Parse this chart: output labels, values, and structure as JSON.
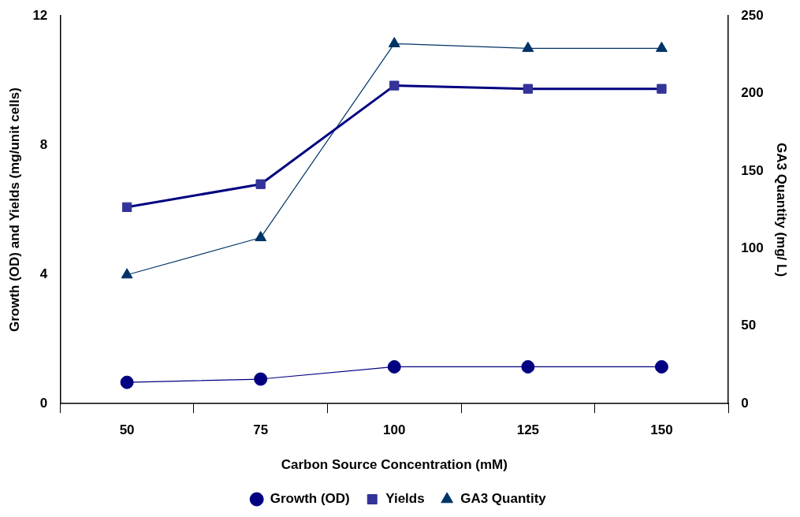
{
  "chart_data": {
    "type": "line",
    "xlabel": "Carbon Source Concentration (mM)",
    "ylabel": "Growth (OD) and Yields (mg/unit cells)",
    "y2label": "GA3 Quantity (mg/ L)",
    "categories": [
      "50",
      "75",
      "100",
      "125",
      "150"
    ],
    "series": [
      {
        "name": "Growth (OD)",
        "color": "#000080",
        "marker": "circle",
        "values": [
          0.66,
          0.76,
          1.14,
          1.14,
          1.14
        ]
      },
      {
        "name": "Yields",
        "color": "#333399",
        "marker": "square",
        "values": [
          6.08,
          6.79,
          9.84,
          9.74,
          9.74
        ]
      },
      {
        "name": "GA3 Quantity",
        "color": "#003366",
        "marker": "triangle",
        "axis": "y2",
        "values": [
          83,
          107,
          232,
          229,
          229
        ]
      }
    ],
    "ylim": [
      0,
      12
    ],
    "yticks": [
      0,
      4,
      8,
      12
    ],
    "y2lim": [
      0,
      250
    ],
    "y2ticks": [
      0,
      50,
      100,
      150,
      200,
      250
    ],
    "grid": false,
    "legend": "bottom",
    "line_style": "solid"
  }
}
